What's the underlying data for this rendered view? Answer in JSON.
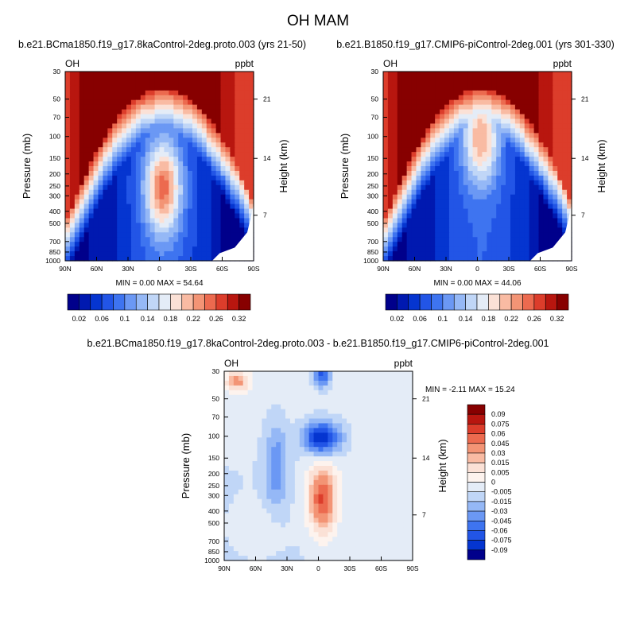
{
  "figure": {
    "title": "OH MAM"
  },
  "chart_data": [
    {
      "type": "heatmap",
      "id": "top-left",
      "title": "b.e21.BCma1850.f19_g17.8kaControl-2deg.proto.003 (yrs 21-50)",
      "left_label": "OH",
      "right_label": "ppbt",
      "ylabel": "Pressure (mb)",
      "ylabel_right": "Height (km)",
      "x_ticks": [
        "90N",
        "60N",
        "30N",
        "0",
        "30S",
        "60S",
        "90S"
      ],
      "y_ticks": [
        "30",
        "50",
        "70",
        "100",
        "150",
        "200",
        "250",
        "300",
        "400",
        "500",
        "700",
        "850",
        "1000"
      ],
      "y_ticks_right": [
        "21",
        "14",
        "7"
      ],
      "min_text": "MIN =  0.00  MAX =  54.64",
      "colorbar": {
        "orientation": "horizontal",
        "labels": [
          "0.02",
          "0.06",
          "0.1",
          "0.14",
          "0.18",
          "0.22",
          "0.26",
          "0.32"
        ],
        "colors": [
          "#00008b",
          "#0019b0",
          "#0535d0",
          "#2255e6",
          "#3e74f0",
          "#6b98f4",
          "#95b8f6",
          "#c0d6f7",
          "#e4ecf7",
          "#fbe1d6",
          "#f9bba3",
          "#f39475",
          "#ec6a4f",
          "#dc3d2b",
          "#b8160f",
          "#870000"
        ]
      }
    },
    {
      "type": "heatmap",
      "id": "top-right",
      "title": "b.e21.B1850.f19_g17.CMIP6-piControl-2deg.001 (yrs 301-330)",
      "left_label": "OH",
      "right_label": "ppbt",
      "ylabel": "Pressure (mb)",
      "ylabel_right": "Height (km)",
      "x_ticks": [
        "90N",
        "60N",
        "30N",
        "0",
        "30S",
        "60S",
        "90S"
      ],
      "y_ticks": [
        "30",
        "50",
        "70",
        "100",
        "150",
        "200",
        "250",
        "300",
        "400",
        "500",
        "700",
        "850",
        "1000"
      ],
      "y_ticks_right": [
        "21",
        "14",
        "7"
      ],
      "min_text": "MIN =  0.00  MAX =  44.06",
      "colorbar": {
        "orientation": "horizontal",
        "labels": [
          "0.02",
          "0.06",
          "0.1",
          "0.14",
          "0.18",
          "0.22",
          "0.26",
          "0.32"
        ],
        "colors": [
          "#00008b",
          "#0019b0",
          "#0535d0",
          "#2255e6",
          "#3e74f0",
          "#6b98f4",
          "#95b8f6",
          "#c0d6f7",
          "#e4ecf7",
          "#fbe1d6",
          "#f9bba3",
          "#f39475",
          "#ec6a4f",
          "#dc3d2b",
          "#b8160f",
          "#870000"
        ]
      }
    },
    {
      "type": "heatmap",
      "id": "bottom-diff",
      "title": "b.e21.BCma1850.f19_g17.8kaControl-2deg.proto.003 - b.e21.B1850.f19_g17.CMIP6-piControl-2deg.001",
      "left_label": "OH",
      "right_label": "ppbt",
      "ylabel": "Pressure (mb)",
      "ylabel_right": "Height (km)",
      "x_ticks": [
        "90N",
        "60N",
        "30N",
        "0",
        "30S",
        "60S",
        "90S"
      ],
      "y_ticks": [
        "30",
        "50",
        "70",
        "100",
        "150",
        "200",
        "250",
        "300",
        "400",
        "500",
        "700",
        "850",
        "1000"
      ],
      "y_ticks_right": [
        "21",
        "14",
        "7"
      ],
      "min_text": "MIN = -2.11  MAX =  15.24",
      "colorbar": {
        "orientation": "vertical",
        "labels": [
          "0.09",
          "0.075",
          "0.06",
          "0.045",
          "0.03",
          "0.015",
          "0.005",
          "0",
          "-0.005",
          "-0.015",
          "-0.03",
          "-0.045",
          "-0.06",
          "-0.075",
          "-0.09"
        ],
        "colors": [
          "#870000",
          "#b8160f",
          "#dc3d2b",
          "#ec6a4f",
          "#f39475",
          "#f9bba3",
          "#fbe1d6",
          "#fdf3ee",
          "#e4ecf7",
          "#c0d6f7",
          "#95b8f6",
          "#6b98f4",
          "#3e74f0",
          "#2255e6",
          "#0535d0",
          "#00008b"
        ]
      }
    }
  ]
}
